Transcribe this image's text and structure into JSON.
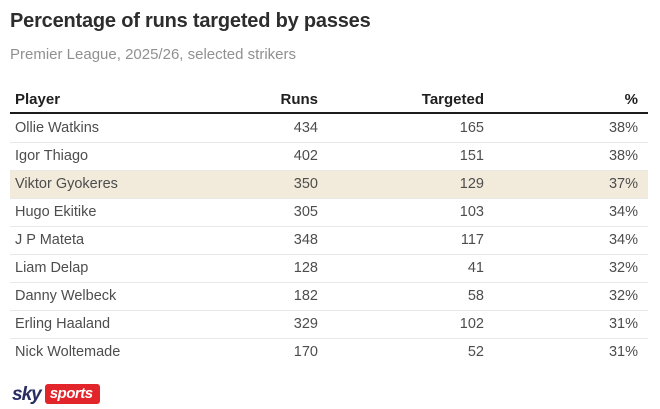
{
  "page": {
    "title": "Percentage of runs targeted by passes",
    "subtitle": "Premier League, 2025/26, selected strikers"
  },
  "table": {
    "columns": [
      "Player",
      "Runs",
      "Targeted",
      "%"
    ],
    "rows": [
      {
        "player": "Ollie Watkins",
        "runs": "434",
        "targeted": "165",
        "pct": "38%",
        "highlighted": false
      },
      {
        "player": "Igor Thiago",
        "runs": "402",
        "targeted": "151",
        "pct": "38%",
        "highlighted": false
      },
      {
        "player": "Viktor Gyokeres",
        "runs": "350",
        "targeted": "129",
        "pct": "37%",
        "highlighted": true
      },
      {
        "player": "Hugo Ekitike",
        "runs": "305",
        "targeted": "103",
        "pct": "34%",
        "highlighted": false
      },
      {
        "player": "J P Mateta",
        "runs": "348",
        "targeted": "117",
        "pct": "34%",
        "highlighted": false
      },
      {
        "player": "Liam Delap",
        "runs": "128",
        "targeted": "41",
        "pct": "32%",
        "highlighted": false
      },
      {
        "player": "Danny Welbeck",
        "runs": "182",
        "targeted": "58",
        "pct": "32%",
        "highlighted": false
      },
      {
        "player": "Erling Haaland",
        "runs": "329",
        "targeted": "102",
        "pct": "31%",
        "highlighted": false
      },
      {
        "player": "Nick Woltemade",
        "runs": "170",
        "targeted": "52",
        "pct": "31%",
        "highlighted": false
      }
    ]
  },
  "footer": {
    "logo_sky": "sky",
    "logo_sports": "sports"
  },
  "colors": {
    "highlight_row": "#f2ebdc",
    "header_rule": "#1c1c1c",
    "row_separator": "#e8e8e8",
    "title_text": "#2d2d2d",
    "subtitle_text": "#909090",
    "cell_text": "#4d4d4d",
    "logo_navy": "#272d61",
    "logo_red": "#e1252b"
  },
  "chart_data": {
    "type": "table",
    "title": "Percentage of runs targeted by passes",
    "subtitle": "Premier League, 2025/26, selected strikers",
    "columns": [
      "Player",
      "Runs",
      "Targeted",
      "%"
    ],
    "rows": [
      [
        "Ollie Watkins",
        434,
        165,
        "38%"
      ],
      [
        "Igor Thiago",
        402,
        151,
        "38%"
      ],
      [
        "Viktor Gyokeres",
        350,
        129,
        "37%"
      ],
      [
        "Hugo Ekitike",
        305,
        103,
        "34%"
      ],
      [
        "J P Mateta",
        348,
        117,
        "34%"
      ],
      [
        "Liam Delap",
        128,
        41,
        "32%"
      ],
      [
        "Danny Welbeck",
        182,
        58,
        "32%"
      ],
      [
        "Erling Haaland",
        329,
        102,
        "31%"
      ],
      [
        "Nick Woltemade",
        170,
        52,
        "31%"
      ]
    ],
    "highlighted_row": "Viktor Gyokeres",
    "source": "Sky Sports"
  }
}
